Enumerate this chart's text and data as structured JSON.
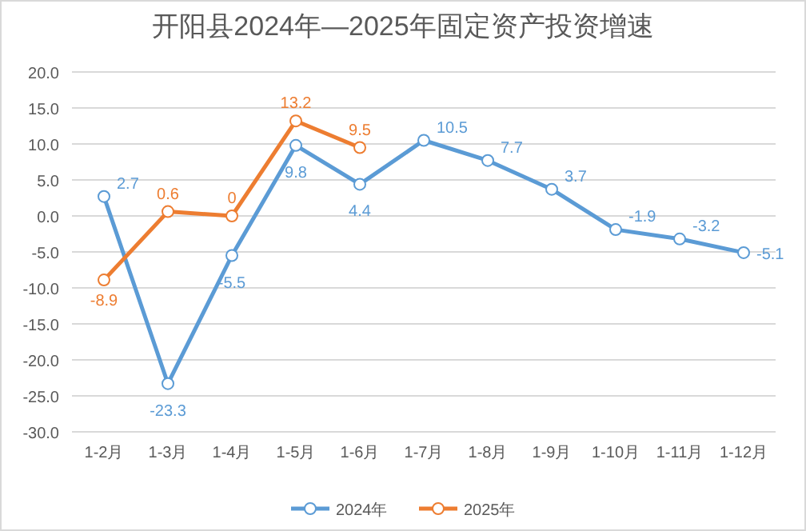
{
  "chart_data": {
    "type": "line",
    "title": "开阳县2024年—2025年固定资产投资增速",
    "categories": [
      "1-2月",
      "1-3月",
      "1-4月",
      "1-5月",
      "1-6月",
      "1-7月",
      "1-8月",
      "1-9月",
      "1-10月",
      "1-11月",
      "1-12月"
    ],
    "series": [
      {
        "name": "2024年",
        "color": "#5b9bd5",
        "values": [
          2.7,
          -23.3,
          -5.5,
          9.8,
          4.4,
          10.5,
          7.7,
          3.7,
          -1.9,
          -3.2,
          -5.1
        ],
        "value_labels": [
          "2.7",
          "-23.3",
          "-5.5",
          "9.8",
          "4.4",
          "10.5",
          "7.7",
          "3.7",
          "-1.9",
          "-3.2",
          "-5.1"
        ]
      },
      {
        "name": "2025年",
        "color": "#ed7d31",
        "values": [
          -8.9,
          0.6,
          0,
          13.2,
          9.5,
          null,
          null,
          null,
          null,
          null,
          null
        ],
        "value_labels": [
          "-8.9",
          "0.6",
          "0",
          "13.2",
          "9.5",
          null,
          null,
          null,
          null,
          null,
          null
        ]
      }
    ],
    "ylim": [
      -30,
      20
    ],
    "yticks": [
      {
        "value": 20,
        "label": "20.0"
      },
      {
        "value": 15,
        "label": "15.0"
      },
      {
        "value": 10,
        "label": "10.0"
      },
      {
        "value": 5,
        "label": "5.0"
      },
      {
        "value": 0,
        "label": "0.0"
      },
      {
        "value": -5,
        "label": "-5.0"
      },
      {
        "value": -10,
        "label": "-10.0"
      },
      {
        "value": -15,
        "label": "-15.0"
      },
      {
        "value": -20,
        "label": "-20.0"
      },
      {
        "value": -25,
        "label": "-25.0"
      },
      {
        "value": -30,
        "label": "-30.0"
      }
    ],
    "grid": "y",
    "legend": "bottom",
    "marker": "circle",
    "line_style": "solid"
  }
}
